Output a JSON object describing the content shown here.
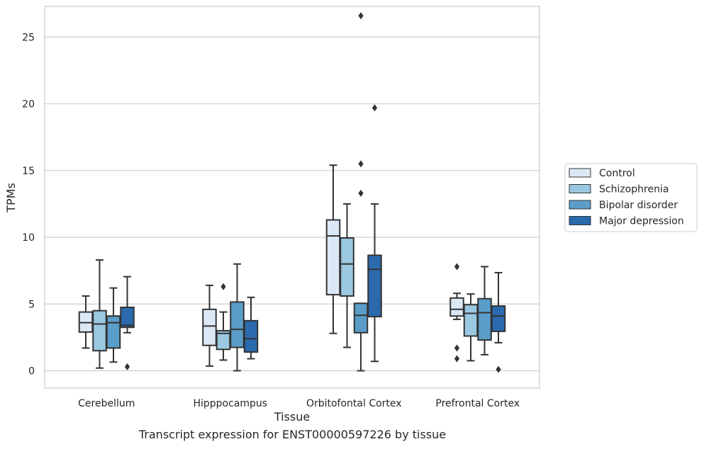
{
  "chart_data": {
    "type": "box",
    "xlabel": "Tissue",
    "ylabel": "TPMs",
    "ylim": [
      -1.3,
      27.3
    ],
    "yticks": [
      0,
      5,
      10,
      15,
      20,
      25
    ],
    "grid": "horizontal",
    "legend_placement": "right-outside",
    "categories": [
      "Cerebellum",
      "Hipppocampus",
      "Orbitofontal Cortex",
      "Prefrontal Cortex"
    ],
    "series": [
      {
        "name": "Control",
        "color": "#dbe9f6",
        "boxes": [
          {
            "whislo": 1.7,
            "q1": 2.9,
            "med": 3.6,
            "q3": 4.4,
            "whishi": 5.6,
            "fliers": []
          },
          {
            "whislo": 0.35,
            "q1": 1.9,
            "med": 3.35,
            "q3": 4.6,
            "whishi": 6.4,
            "fliers": []
          },
          {
            "whislo": 2.8,
            "q1": 5.7,
            "med": 10.1,
            "q3": 11.3,
            "whishi": 15.4,
            "fliers": []
          },
          {
            "whislo": 3.85,
            "q1": 4.1,
            "med": 4.6,
            "q3": 5.45,
            "whishi": 5.8,
            "fliers": [
              0.9,
              1.7,
              7.8
            ]
          }
        ]
      },
      {
        "name": "Schizophrenia",
        "color": "#9ac8e0",
        "boxes": [
          {
            "whislo": 0.2,
            "q1": 1.5,
            "med": 3.5,
            "q3": 4.5,
            "whishi": 8.3,
            "fliers": []
          },
          {
            "whislo": 0.8,
            "q1": 1.6,
            "med": 2.8,
            "q3": 3.0,
            "whishi": 4.4,
            "fliers": [
              6.3
            ]
          },
          {
            "whislo": 1.75,
            "q1": 5.6,
            "med": 8.0,
            "q3": 9.95,
            "whishi": 12.5,
            "fliers": []
          },
          {
            "whislo": 0.75,
            "q1": 2.6,
            "med": 4.3,
            "q3": 4.95,
            "whishi": 5.75,
            "fliers": []
          }
        ]
      },
      {
        "name": "Bipolar disorder",
        "color": "#5b9dc9",
        "boxes": [
          {
            "whislo": 0.65,
            "q1": 1.7,
            "med": 3.6,
            "q3": 4.1,
            "whishi": 6.2,
            "fliers": []
          },
          {
            "whislo": 0.0,
            "q1": 1.75,
            "med": 3.1,
            "q3": 5.15,
            "whishi": 8.0,
            "fliers": []
          },
          {
            "whislo": 0.0,
            "q1": 2.85,
            "med": 4.15,
            "q3": 5.05,
            "whishi": 5.05,
            "fliers": [
              13.3,
              15.5,
              26.6
            ]
          },
          {
            "whislo": 1.2,
            "q1": 2.3,
            "med": 4.35,
            "q3": 5.4,
            "whishi": 7.8,
            "fliers": []
          }
        ]
      },
      {
        "name": "Major depression",
        "color": "#2a6aad",
        "boxes": [
          {
            "whislo": 2.85,
            "q1": 3.25,
            "med": 3.4,
            "q3": 4.75,
            "whishi": 7.05,
            "fliers": [
              0.3
            ]
          },
          {
            "whislo": 0.9,
            "q1": 1.4,
            "med": 2.4,
            "q3": 3.75,
            "whishi": 5.5,
            "fliers": []
          },
          {
            "whislo": 0.7,
            "q1": 4.05,
            "med": 7.6,
            "q3": 8.65,
            "whishi": 12.5,
            "fliers": [
              19.7
            ]
          },
          {
            "whislo": 2.1,
            "q1": 2.95,
            "med": 4.1,
            "q3": 4.85,
            "whishi": 7.35,
            "fliers": [
              0.1
            ]
          }
        ]
      }
    ]
  },
  "caption": "Transcript expression for ENST00000597226 by tissue"
}
